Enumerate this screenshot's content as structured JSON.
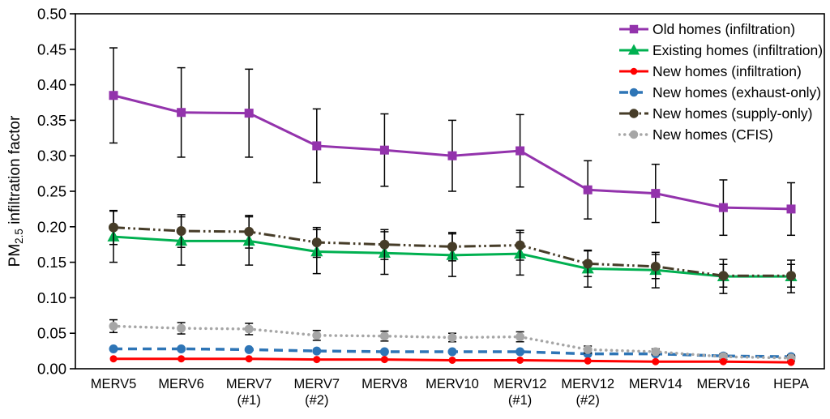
{
  "chart_data": {
    "type": "line",
    "title": "",
    "ylabel_parts": {
      "prefix": "PM",
      "sub": "2.5",
      "suffix": " infiltration factor"
    },
    "xlabel": "",
    "ylim": [
      0.0,
      0.5
    ],
    "ytick_step": 0.05,
    "yticks": [
      "0.00",
      "0.05",
      "0.10",
      "0.15",
      "0.20",
      "0.25",
      "0.30",
      "0.35",
      "0.40",
      "0.45",
      "0.50"
    ],
    "grid": false,
    "legend_position": "top-right-inside",
    "categories": [
      "MERV5",
      "MERV6",
      "MERV7|(#1)",
      "MERV7|(#2)",
      "MERV8",
      "MERV10",
      "MERV12|(#1)",
      "MERV12|(#2)",
      "MERV14",
      "MERV16",
      "HEPA"
    ],
    "axis_color": "#000000",
    "error_bar_color": "#000000",
    "series": [
      {
        "name": "Old homes (infiltration)",
        "color": "#9333AC",
        "marker": "square",
        "line_style": "solid",
        "values": [
          0.385,
          0.361,
          0.36,
          0.314,
          0.308,
          0.3,
          0.307,
          0.252,
          0.247,
          0.227,
          0.225
        ],
        "err": [
          0.067,
          0.063,
          0.062,
          0.052,
          0.051,
          0.05,
          0.051,
          0.041,
          0.041,
          0.039,
          0.037
        ]
      },
      {
        "name": "Existing homes (infiltration)",
        "color": "#00B050",
        "marker": "triangle",
        "line_style": "solid",
        "values": [
          0.186,
          0.18,
          0.18,
          0.165,
          0.163,
          0.16,
          0.162,
          0.141,
          0.139,
          0.13,
          0.13
        ],
        "err": [
          0.036,
          0.034,
          0.034,
          0.031,
          0.03,
          0.03,
          0.03,
          0.026,
          0.025,
          0.024,
          0.023
        ]
      },
      {
        "name": "New homes (infiltration)",
        "color": "#FF0000",
        "marker": "circle",
        "line_style": "solid",
        "values": [
          0.014,
          0.014,
          0.014,
          0.013,
          0.013,
          0.012,
          0.012,
          0.011,
          0.01,
          0.01,
          0.009
        ],
        "err": [
          0,
          0,
          0,
          0,
          0,
          0,
          0,
          0,
          0,
          0,
          0
        ]
      },
      {
        "name": "New homes (exhaust-only)",
        "color": "#2E75B6",
        "marker": "circle",
        "line_style": "dashed",
        "values": [
          0.028,
          0.028,
          0.027,
          0.025,
          0.024,
          0.024,
          0.024,
          0.021,
          0.021,
          0.018,
          0.017
        ],
        "err": [
          0,
          0,
          0,
          0,
          0,
          0,
          0,
          0,
          0,
          0,
          0
        ]
      },
      {
        "name": "New homes (supply-only)",
        "color": "#463C28",
        "marker": "circle",
        "line_style": "dashdotdot",
        "values": [
          0.199,
          0.194,
          0.193,
          0.178,
          0.175,
          0.172,
          0.174,
          0.148,
          0.144,
          0.131,
          0.131
        ],
        "err": [
          0.024,
          0.023,
          0.023,
          0.021,
          0.021,
          0.02,
          0.021,
          0.018,
          0.017,
          0.016,
          0.016
        ]
      },
      {
        "name": "New homes (CFIS)",
        "color": "#A6A6A6",
        "marker": "circle",
        "line_style": "dotted",
        "values": [
          0.06,
          0.057,
          0.056,
          0.047,
          0.046,
          0.044,
          0.045,
          0.027,
          0.024,
          0.017,
          0.015
        ],
        "err": [
          0.009,
          0.008,
          0.008,
          0.007,
          0.007,
          0.006,
          0.007,
          0.005,
          0.004,
          0.004,
          0.004
        ]
      }
    ]
  }
}
